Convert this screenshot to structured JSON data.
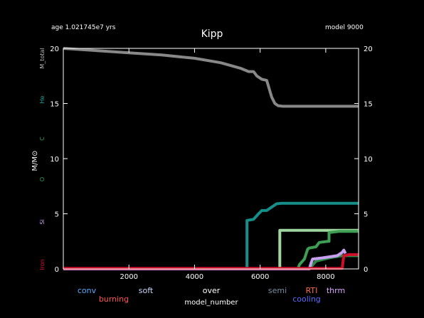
{
  "header": {
    "age_label": "age 1.021745e7 yrs",
    "model_label": "model 9000",
    "title": "Kipp"
  },
  "chart_data": {
    "type": "line",
    "title": "Kipp",
    "xlabel": "model_number",
    "ylabel": "M/M_sun",
    "xlim": [
      0,
      9000
    ],
    "ylim": [
      0,
      20
    ],
    "x_ticks": [
      "2000",
      "4000",
      "6000",
      "8000"
    ],
    "y_ticks": [
      "0",
      "5",
      "10",
      "15",
      "20"
    ],
    "grid": false,
    "side_labels": [
      {
        "text": "M_total",
        "color": "#bdbdbd"
      },
      {
        "text": "He",
        "color": "#20a39a"
      },
      {
        "text": "C",
        "color": "#3aa35a"
      },
      {
        "text": "O",
        "color": "#2e9e4e"
      },
      {
        "text": "Si",
        "color": "#c9a0f0"
      },
      {
        "text": "Iron",
        "color": "#e0102e"
      }
    ],
    "series": [
      {
        "name": "M_total",
        "color": "#888888",
        "x": [
          0,
          1000,
          2000,
          3000,
          4000,
          4800,
          5400,
          5650,
          5800,
          5900,
          6050,
          6200,
          6350,
          6450,
          6550,
          6700,
          7000,
          8000,
          9000
        ],
        "y": [
          20.0,
          19.8,
          19.6,
          19.4,
          19.1,
          18.7,
          18.2,
          17.9,
          17.9,
          17.5,
          17.2,
          17.1,
          15.6,
          15.0,
          14.8,
          14.75,
          14.75,
          14.75,
          14.75
        ]
      },
      {
        "name": "He",
        "color": "#168f8a",
        "x": [
          0,
          5600,
          5600,
          5800,
          5950,
          6050,
          6200,
          6350,
          6500,
          6650,
          9000
        ],
        "y": [
          0,
          0,
          4.4,
          4.5,
          5.0,
          5.3,
          5.3,
          5.6,
          5.9,
          5.95,
          5.95
        ]
      },
      {
        "name": "C",
        "color": "#9fd6a0",
        "x": [
          0,
          6600,
          6600,
          8100,
          8150,
          9000
        ],
        "y": [
          0,
          0,
          3.5,
          3.5,
          3.5,
          3.5
        ]
      },
      {
        "name": "C_inner",
        "color": "#3d9e54",
        "x": [
          0,
          7150,
          7200,
          7350,
          7450,
          7500,
          7700,
          7800,
          8050,
          8100,
          8100,
          8400,
          9000
        ],
        "y": [
          0,
          0,
          0.4,
          0.9,
          1.8,
          1.9,
          2.0,
          2.4,
          2.5,
          2.5,
          3.3,
          3.4,
          3.4
        ]
      },
      {
        "name": "O",
        "color": "#2e8a48",
        "x": [
          0,
          7500,
          7700,
          8100,
          8300,
          8500,
          9000
        ],
        "y": [
          0,
          0,
          0.7,
          1.0,
          1.1,
          1.2,
          1.2
        ]
      },
      {
        "name": "Si",
        "color": "#c9a0f0",
        "x": [
          0,
          7500,
          7550,
          7600,
          7900,
          8350,
          8500,
          8550,
          8600
        ],
        "y": [
          0,
          0,
          0.5,
          0.9,
          1.0,
          1.2,
          1.5,
          1.7,
          1.4
        ]
      },
      {
        "name": "Iron",
        "color": "#d0102a",
        "x": [
          0,
          8500,
          8550,
          8700,
          9000
        ],
        "y": [
          0.05,
          0.05,
          1.2,
          1.3,
          1.3
        ]
      }
    ],
    "legend": {
      "row1": [
        {
          "text": "conv",
          "color": "#55aaff"
        },
        {
          "text": "soft",
          "color": "#c9d6ff"
        },
        {
          "text": "over",
          "color": "#ffffff"
        },
        {
          "text": "semi",
          "color": "#7a8fa3"
        },
        {
          "text": "RTI",
          "color": "#ff6a4a"
        },
        {
          "text": "thrm",
          "color": "#d9a8ff"
        }
      ],
      "row2": [
        {
          "text": "burning",
          "color": "#ff5555"
        },
        {
          "text": "cooling",
          "color": "#5a6bff"
        }
      ]
    }
  }
}
